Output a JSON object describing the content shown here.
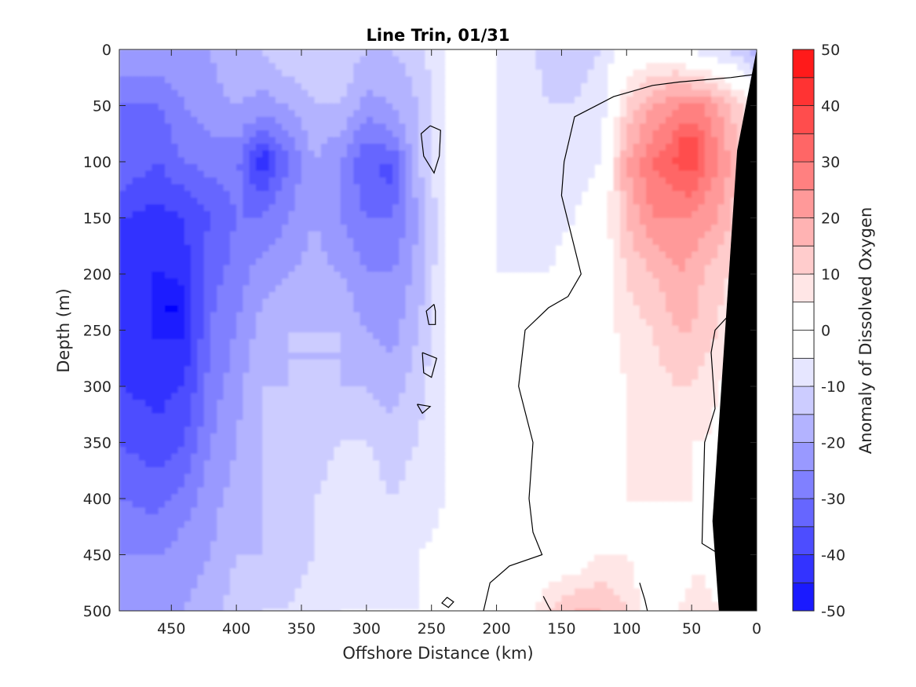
{
  "chart_data": {
    "type": "heatmap",
    "subtype": "filled-contour",
    "title": "Line Trin, 01/31",
    "xlabel": "Offshore Distance (km)",
    "ylabel": "Depth (m)",
    "colorbar_label": "Anomaly of Dissolved Oxygen",
    "xlim": [
      490,
      0
    ],
    "x_reversed": true,
    "ylim": [
      500,
      0
    ],
    "y_reversed": true,
    "x_ticks": [
      450,
      400,
      350,
      300,
      250,
      200,
      150,
      100,
      50,
      0
    ],
    "y_ticks": [
      0,
      50,
      100,
      150,
      200,
      250,
      300,
      350,
      400,
      450,
      500
    ],
    "colorbar_ticks": [
      50,
      40,
      30,
      20,
      10,
      0,
      -10,
      -20,
      -30,
      -40,
      -50
    ],
    "contour_levels": [
      -50,
      -45,
      -40,
      -35,
      -30,
      -25,
      -20,
      -15,
      -10,
      -5,
      0,
      5,
      10,
      15,
      20,
      25,
      30,
      35,
      40,
      45,
      50
    ],
    "colormap": [
      "#0000ff",
      "#1a1aff",
      "#3333ff",
      "#4d4dff",
      "#6666ff",
      "#8080ff",
      "#9999ff",
      "#b3b3ff",
      "#ccccff",
      "#e6e6ff",
      "#ffffff",
      "#ffffff",
      "#ffe6e6",
      "#ffcccc",
      "#ffb3b3",
      "#ff9999",
      "#ff8080",
      "#ff6666",
      "#ff4d4d",
      "#ff3333",
      "#ff1a1a",
      "#ff0000"
    ],
    "zero_contour_color": "#000000",
    "land_color": "#000000",
    "grid": false,
    "field_samples": {
      "distance_km": [
        490,
        460,
        440,
        420,
        400,
        380,
        360,
        340,
        320,
        300,
        280,
        260,
        240,
        220,
        200,
        180,
        160,
        140,
        120,
        100,
        80,
        60,
        50,
        40,
        30,
        20,
        10,
        0
      ],
      "depth_m": [
        0,
        50,
        100,
        150,
        200,
        250,
        300,
        350,
        400,
        450,
        500
      ],
      "anomaly": [
        [
          -20,
          -20,
          -20,
          -20,
          -15,
          -15,
          -10,
          -10,
          -10,
          -15,
          -15,
          -12,
          -5,
          0,
          -5,
          -8,
          -12,
          -12,
          -10,
          0,
          0,
          0,
          -5,
          -8,
          -10,
          -12,
          -15,
          -20
        ],
        [
          -30,
          -30,
          -25,
          -22,
          -20,
          -22,
          -20,
          -15,
          -15,
          -22,
          -20,
          -15,
          -5,
          -3,
          -5,
          -8,
          -10,
          -10,
          -8,
          10,
          20,
          25,
          25,
          25,
          20,
          15,
          10,
          0
        ],
        [
          -30,
          -35,
          -30,
          -28,
          -28,
          -38,
          -30,
          -20,
          -25,
          -35,
          -30,
          -15,
          -5,
          0,
          -5,
          -8,
          -8,
          -8,
          -5,
          20,
          30,
          35,
          38,
          30,
          25,
          20,
          10,
          0
        ],
        [
          -40,
          -42,
          -40,
          -35,
          -30,
          -30,
          -25,
          -20,
          -25,
          -30,
          -30,
          -20,
          -5,
          -2,
          -5,
          -8,
          -8,
          -5,
          0,
          15,
          25,
          25,
          25,
          22,
          20,
          15,
          8,
          0
        ],
        [
          -42,
          -45,
          -42,
          -32,
          -28,
          -22,
          -20,
          -18,
          -20,
          -25,
          -25,
          -18,
          -5,
          -3,
          -5,
          -5,
          -5,
          0,
          0,
          10,
          15,
          20,
          18,
          15,
          12,
          10,
          5,
          0
        ],
        [
          -42,
          -45,
          -45,
          -30,
          -25,
          -18,
          -15,
          -15,
          -15,
          -20,
          -22,
          -15,
          -5,
          0,
          -5,
          -5,
          -3,
          0,
          0,
          8,
          10,
          15,
          15,
          12,
          10,
          5,
          3,
          0
        ],
        [
          -40,
          -42,
          -40,
          -28,
          -22,
          -15,
          -15,
          -15,
          -15,
          -15,
          -18,
          -12,
          -5,
          0,
          -5,
          -5,
          -3,
          0,
          0,
          5,
          8,
          10,
          10,
          8,
          5,
          3,
          0,
          0
        ],
        [
          -35,
          -38,
          -35,
          -25,
          -20,
          -15,
          -15,
          -12,
          -10,
          -10,
          -12,
          -10,
          -5,
          0,
          -3,
          -5,
          -3,
          0,
          0,
          5,
          8,
          8,
          5,
          5,
          3,
          0,
          -5,
          0
        ],
        [
          -30,
          -32,
          -28,
          -22,
          -18,
          -15,
          -15,
          -10,
          -8,
          -8,
          -10,
          -8,
          -5,
          0,
          -3,
          -5,
          -3,
          0,
          0,
          5,
          5,
          5,
          5,
          3,
          0,
          -3,
          -5,
          0
        ],
        [
          -25,
          -25,
          -22,
          -20,
          -15,
          -15,
          -12,
          -10,
          -8,
          -8,
          -8,
          -5,
          -3,
          0,
          0,
          -3,
          0,
          0,
          5,
          5,
          0,
          0,
          3,
          3,
          0,
          0,
          0,
          0
        ],
        [
          -20,
          -22,
          -20,
          -18,
          -12,
          -10,
          -10,
          -8,
          -5,
          -5,
          -5,
          -5,
          0,
          0,
          0,
          0,
          10,
          15,
          15,
          10,
          0,
          5,
          8,
          8,
          5,
          10,
          8,
          0
        ]
      ]
    },
    "annotations": {
      "positive_core": {
        "distance_km": 50,
        "depth_m": 85,
        "value": 40
      },
      "negative_cores": [
        {
          "distance_km": 380,
          "depth_m": 100,
          "value": -40
        },
        {
          "distance_km": 280,
          "depth_m": 110,
          "value": -40
        },
        {
          "distance_km": 450,
          "depth_m": 230,
          "value": -45
        }
      ]
    }
  }
}
